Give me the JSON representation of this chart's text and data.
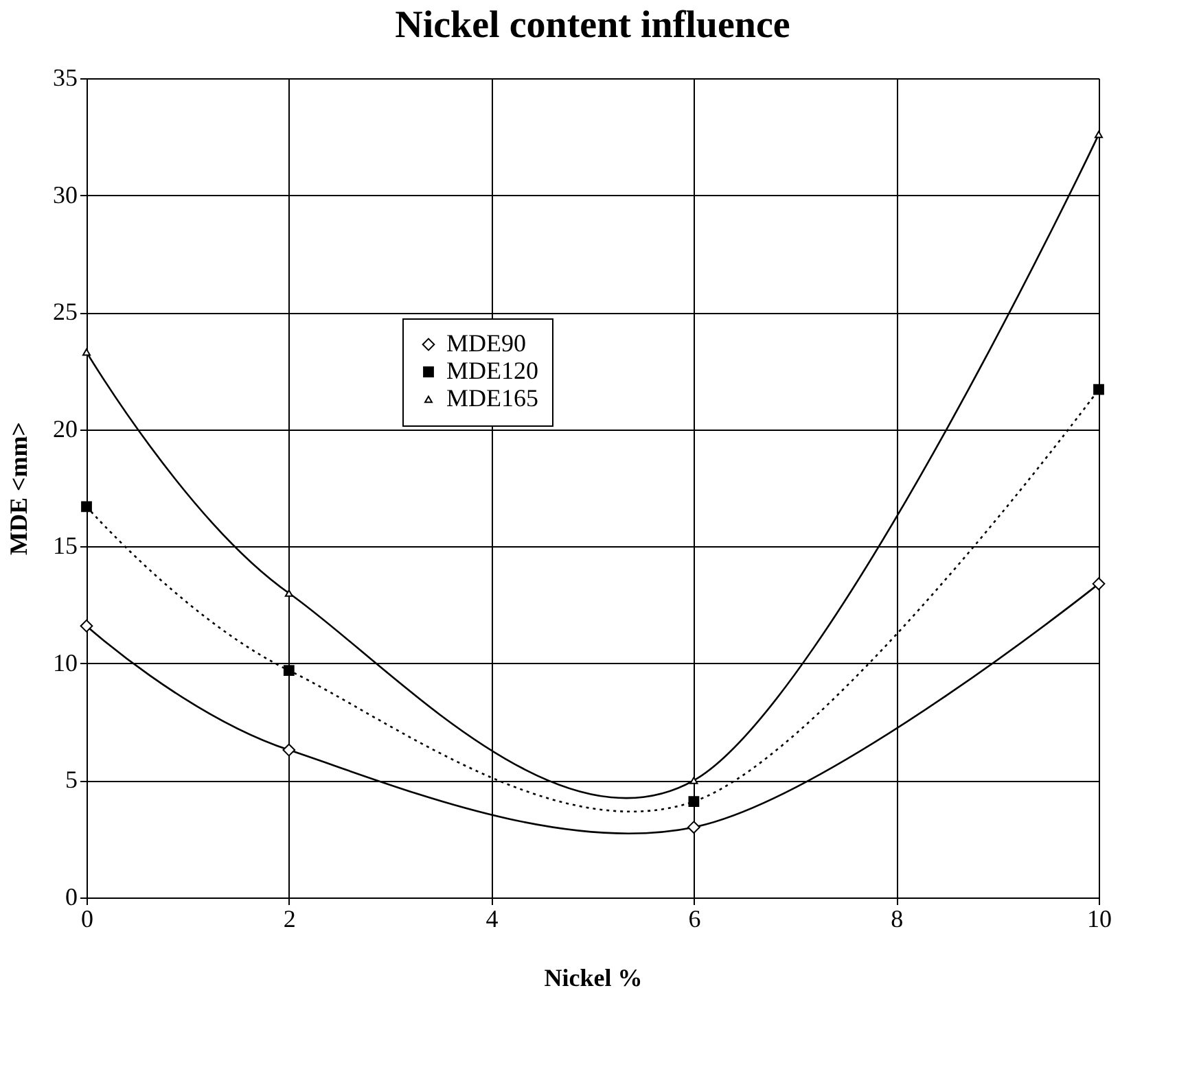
{
  "chart_data": {
    "type": "line",
    "title": "Nickel content influence",
    "xlabel": "Nickel %",
    "ylabel": "MDE <mm>",
    "x": [
      0,
      2,
      6,
      10
    ],
    "series": [
      {
        "name": "MDE90",
        "color": "#000000",
        "values": [
          11.6,
          6.3,
          3.0,
          13.4
        ],
        "marker": "diamond",
        "line_style": "solid"
      },
      {
        "name": "MDE120",
        "color": "#000000",
        "values": [
          16.7,
          9.7,
          4.1,
          21.7
        ],
        "marker": "square",
        "line_style": "dotted"
      },
      {
        "name": "MDE165",
        "color": "#000000",
        "values": [
          23.3,
          13.0,
          5.0,
          32.6
        ],
        "marker": "triangle",
        "line_style": "solid"
      }
    ],
    "xlim": [
      0,
      10
    ],
    "xticks": [
      0,
      2,
      4,
      6,
      8,
      10
    ],
    "ylim": [
      0,
      35
    ],
    "yticks": [
      0,
      5,
      10,
      15,
      20,
      25,
      30,
      35
    ],
    "grid": true,
    "legend": "top"
  }
}
